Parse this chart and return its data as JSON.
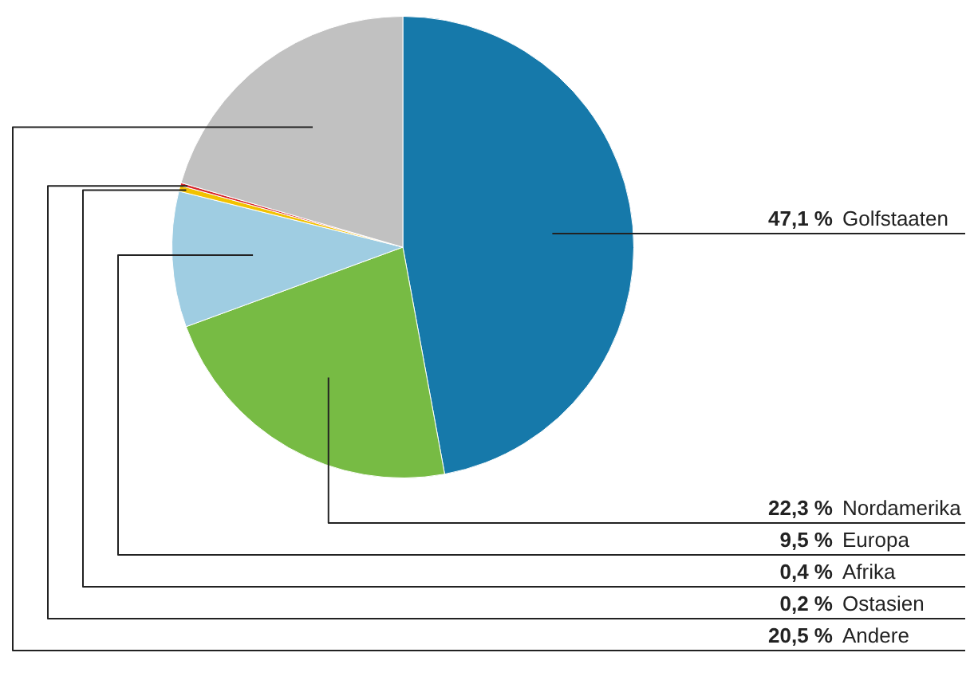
{
  "chart_data": {
    "type": "pie",
    "categories": [
      "Golfstaaten",
      "Nordamerika",
      "Europa",
      "Afrika",
      "Ostasien",
      "Andere"
    ],
    "values": [
      47.1,
      22.3,
      9.5,
      0.4,
      0.2,
      20.5
    ],
    "colors": [
      "#1679aa",
      "#77bb44",
      "#9fcde2",
      "#f2c200",
      "#d7262b",
      "#c1c1c1"
    ],
    "value_labels": [
      "47,1 %",
      "22,3 %",
      "9,5 %",
      "0,4 %",
      "0,2 %",
      "20,5 %"
    ],
    "legend": false
  }
}
